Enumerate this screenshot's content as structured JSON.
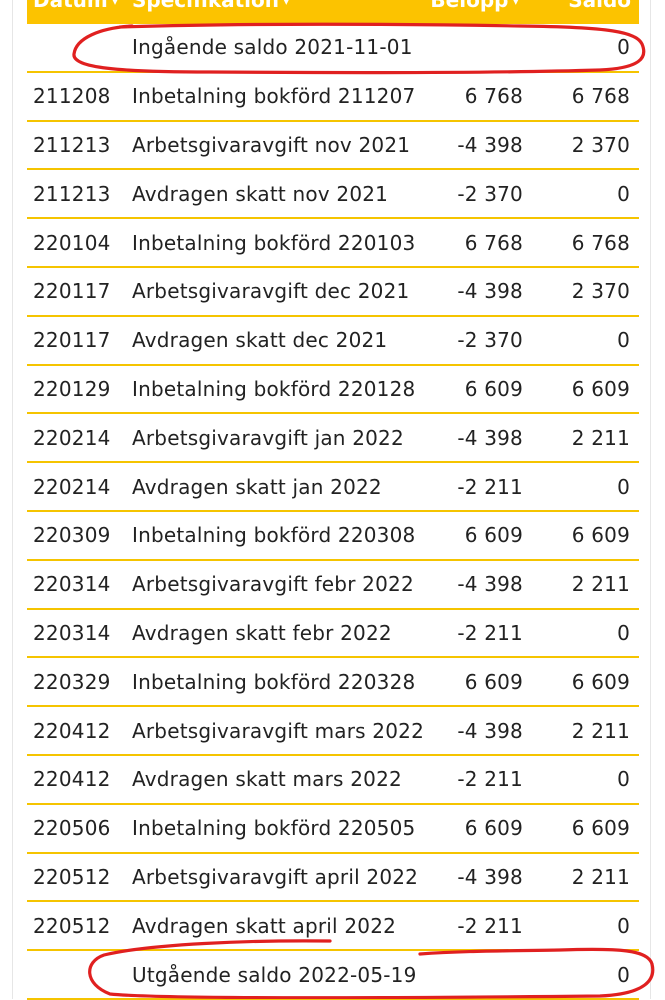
{
  "header": {
    "date": "Datum",
    "spec": "Specifikation",
    "amount": "Belopp",
    "balance": "Saldo",
    "sort_arrow": "▾"
  },
  "rows": [
    {
      "date": "",
      "spec": "Ingående saldo 2021-11-01",
      "amount": "",
      "balance": "0"
    },
    {
      "date": "211208",
      "spec": "Inbetalning bokförd 211207",
      "amount": "6 768",
      "balance": "6 768"
    },
    {
      "date": "211213",
      "spec": "Arbetsgivaravgift nov 2021",
      "amount": "-4 398",
      "balance": "2 370"
    },
    {
      "date": "211213",
      "spec": "Avdragen skatt nov 2021",
      "amount": "-2 370",
      "balance": "0"
    },
    {
      "date": "220104",
      "spec": "Inbetalning bokförd 220103",
      "amount": "6 768",
      "balance": "6 768"
    },
    {
      "date": "220117",
      "spec": "Arbetsgivaravgift dec 2021",
      "amount": "-4 398",
      "balance": "2 370"
    },
    {
      "date": "220117",
      "spec": "Avdragen skatt dec 2021",
      "amount": "-2 370",
      "balance": "0"
    },
    {
      "date": "220129",
      "spec": "Inbetalning bokförd 220128",
      "amount": "6 609",
      "balance": "6 609"
    },
    {
      "date": "220214",
      "spec": "Arbetsgivaravgift jan 2022",
      "amount": "-4 398",
      "balance": "2 211"
    },
    {
      "date": "220214",
      "spec": "Avdragen skatt jan 2022",
      "amount": "-2 211",
      "balance": "0"
    },
    {
      "date": "220309",
      "spec": "Inbetalning bokförd 220308",
      "amount": "6 609",
      "balance": "6 609"
    },
    {
      "date": "220314",
      "spec": "Arbetsgivaravgift febr 2022",
      "amount": "-4 398",
      "balance": "2 211"
    },
    {
      "date": "220314",
      "spec": "Avdragen skatt febr 2022",
      "amount": "-2 211",
      "balance": "0"
    },
    {
      "date": "220329",
      "spec": "Inbetalning bokförd 220328",
      "amount": "6 609",
      "balance": "6 609"
    },
    {
      "date": "220412",
      "spec": "Arbetsgivaravgift mars 2022",
      "amount": "-4 398",
      "balance": "2 211"
    },
    {
      "date": "220412",
      "spec": "Avdragen skatt mars 2022",
      "amount": "-2 211",
      "balance": "0"
    },
    {
      "date": "220506",
      "spec": "Inbetalning bokförd 220505",
      "amount": "6 609",
      "balance": "6 609"
    },
    {
      "date": "220512",
      "spec": "Arbetsgivaravgift april 2022",
      "amount": "-4 398",
      "balance": "2 211"
    },
    {
      "date": "220512",
      "spec": "Avdragen skatt april 2022",
      "amount": "-2 211",
      "balance": "0"
    },
    {
      "date": "",
      "spec": "Utgående saldo 2022-05-19",
      "amount": "",
      "balance": "0"
    }
  ],
  "colors": {
    "header_bg": "#fcc300",
    "row_divider": "#f5c400",
    "annotation_ink": "#e02020"
  }
}
